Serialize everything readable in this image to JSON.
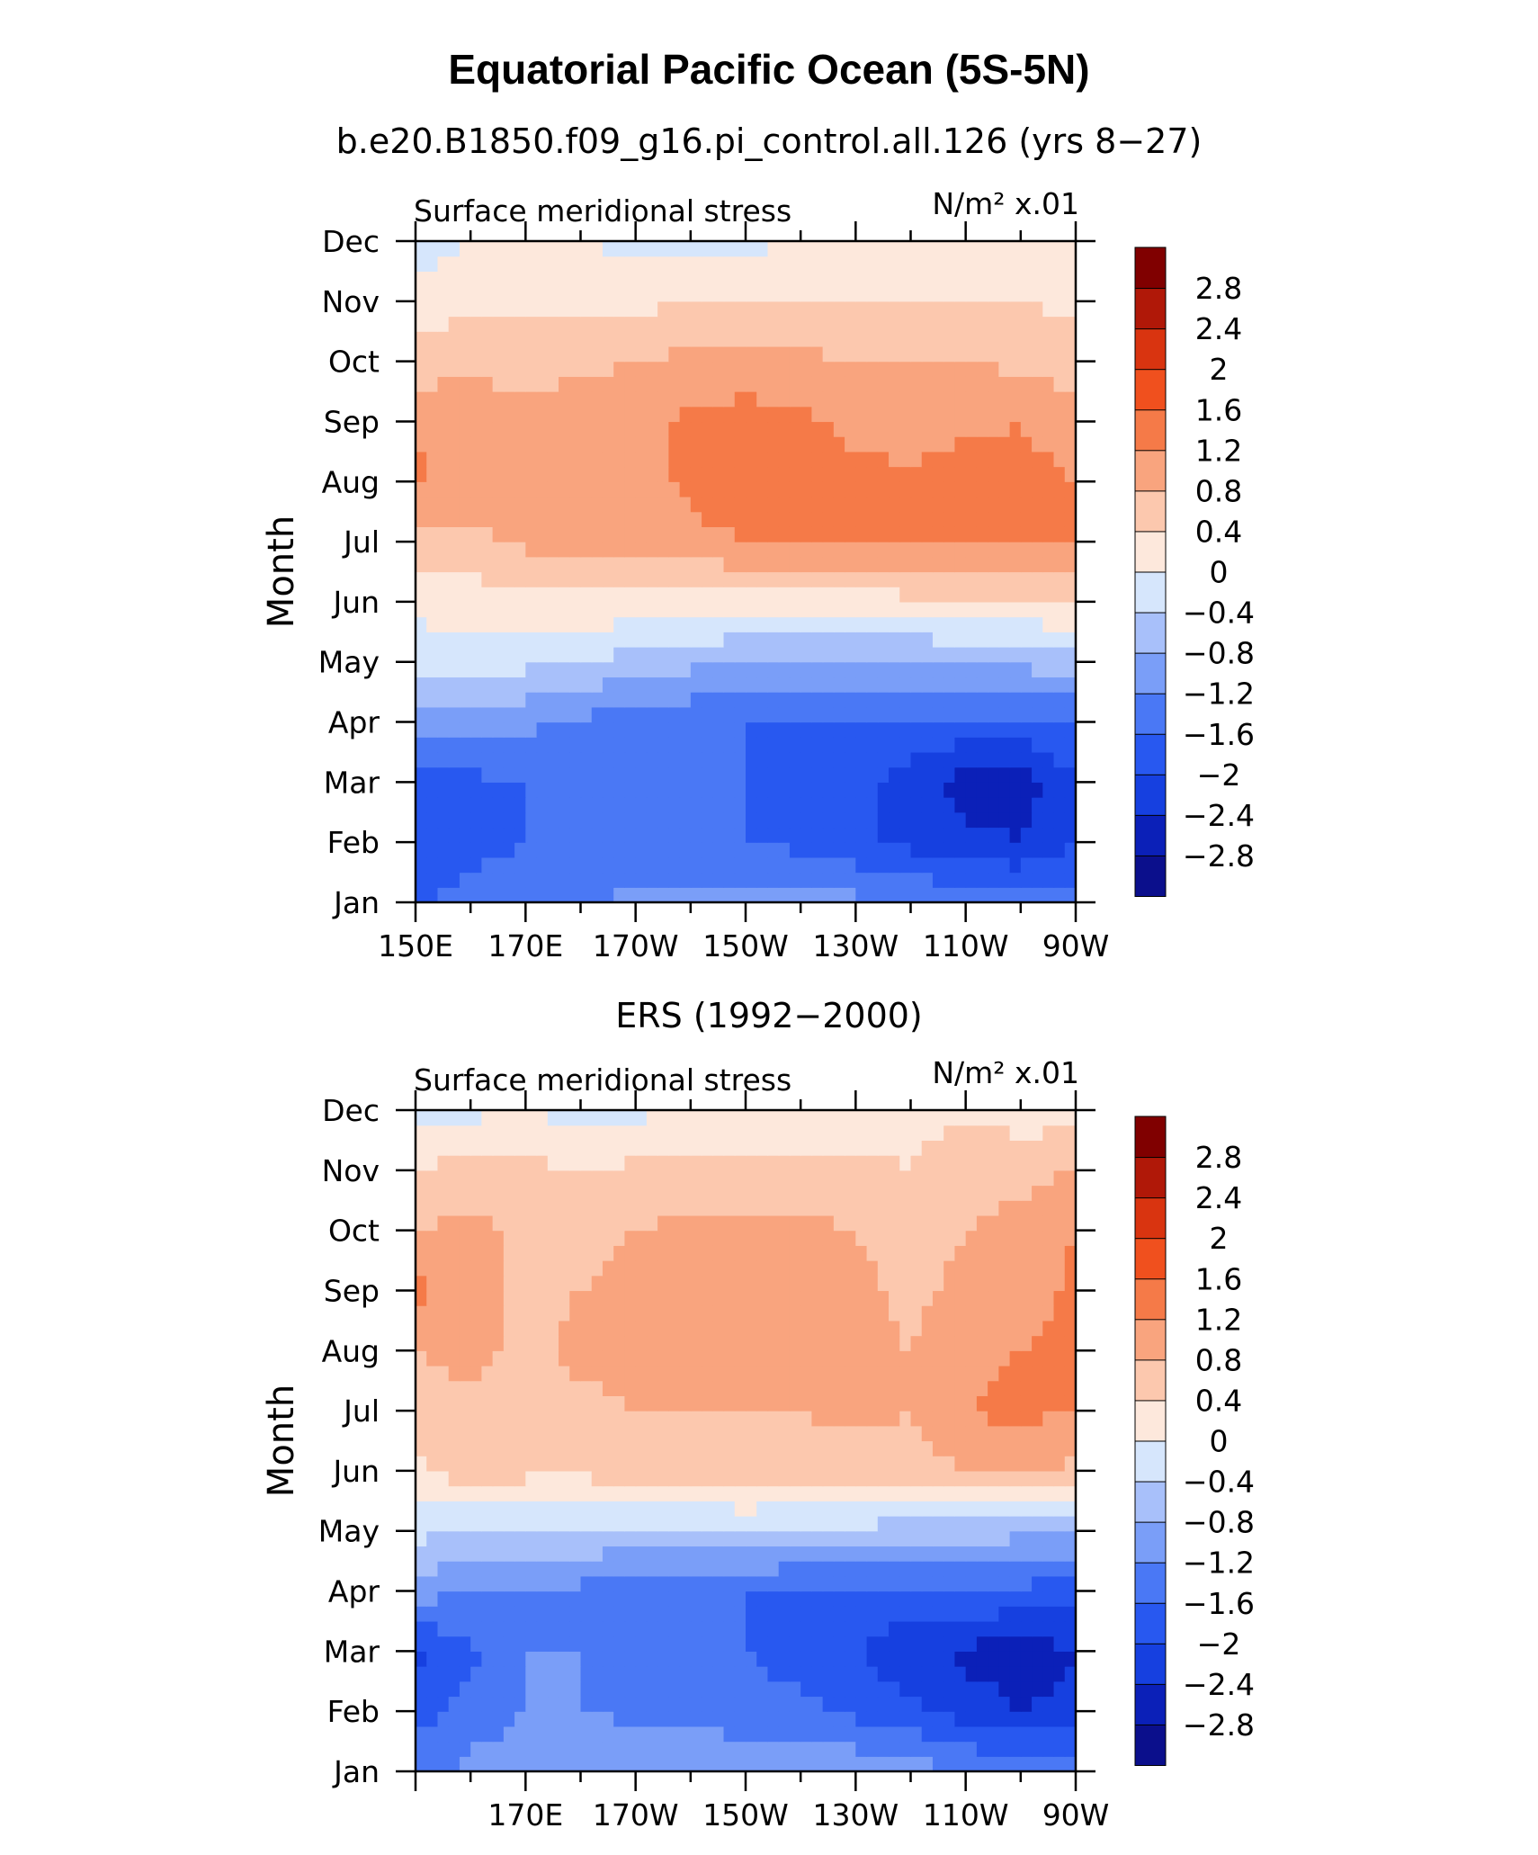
{
  "figure": {
    "title": "Equatorial Pacific Ocean (5S-5N)"
  },
  "legend": {
    "colors": [
      "#0b0f8c",
      "#0b20b8",
      "#1640e0",
      "#2858f0",
      "#4a78f5",
      "#7a9ef8",
      "#a8c0fa",
      "#d6e6fc",
      "#fde8dc",
      "#fcc8ae",
      "#f9a47e",
      "#f57a48",
      "#f0501e",
      "#d93410",
      "#b01808",
      "#800000"
    ],
    "tick_labels": [
      "2.8",
      "2.4",
      "2",
      "1.6",
      "1.2",
      "0.8",
      "0.4",
      "0",
      "−0.4",
      "−0.8",
      "−1.2",
      "−1.6",
      "−2",
      "−2.4",
      "−2.8"
    ]
  },
  "chart_data": [
    {
      "type": "heatmap",
      "title": "b.e20.B1850.f09_g16.pi_control.all.126 (yrs 8−27)",
      "left_label": "Surface meridional stress",
      "right_label": "N/m² x.01",
      "ylabel": "Month",
      "xlabel": "",
      "y_categories": [
        "Jan",
        "Feb",
        "Mar",
        "Apr",
        "May",
        "Jun",
        "Jul",
        "Aug",
        "Sep",
        "Oct",
        "Nov",
        "Dec"
      ],
      "x_tick_labels": [
        "150E",
        "170E",
        "170W",
        "150W",
        "130W",
        "110W",
        "90W"
      ],
      "x_range": [
        150,
        270
      ],
      "levels": [
        -2.8,
        -2.4,
        -2.0,
        -1.6,
        -1.2,
        -0.8,
        -0.4,
        0,
        0.4,
        0.8,
        1.2,
        1.6,
        2.0,
        2.4,
        2.8
      ],
      "longitudes": [
        150,
        160,
        170,
        180,
        190,
        200,
        210,
        220,
        230,
        240,
        250,
        260,
        270
      ],
      "values": [
        [
          -1.6,
          -1.5,
          -1.4,
          -1.2,
          -1.1,
          -1.0,
          -1.0,
          -1.0,
          -1.1,
          -1.2,
          -1.3,
          -1.4,
          -1.4
        ],
        [
          -1.9,
          -1.7,
          -1.6,
          -1.6,
          -1.6,
          -1.6,
          -1.6,
          -1.7,
          -1.9,
          -2.1,
          -2.3,
          -2.4,
          -2.0
        ],
        [
          -1.8,
          -1.7,
          -1.6,
          -1.6,
          -1.6,
          -1.6,
          -1.6,
          -1.7,
          -1.9,
          -2.2,
          -2.6,
          -2.6,
          -2.0
        ],
        [
          -1.1,
          -1.1,
          -1.1,
          -1.3,
          -1.4,
          -1.5,
          -1.6,
          -1.6,
          -1.6,
          -1.6,
          -1.7,
          -1.7,
          -1.6
        ],
        [
          -0.2,
          -0.2,
          -0.3,
          -0.4,
          -0.6,
          -0.7,
          -0.8,
          -0.9,
          -0.9,
          -0.9,
          -0.8,
          -0.7,
          -0.6
        ],
        [
          0.1,
          0.2,
          0.2,
          0.3,
          0.3,
          0.2,
          0.2,
          0.2,
          0.2,
          0.3,
          0.4,
          0.4,
          0.4
        ],
        [
          0.6,
          0.7,
          0.9,
          0.9,
          0.9,
          1.1,
          1.2,
          1.2,
          1.2,
          1.3,
          1.3,
          1.3,
          1.2
        ],
        [
          1.3,
          1.0,
          0.9,
          0.9,
          1.0,
          1.3,
          1.4,
          1.4,
          1.3,
          1.3,
          1.4,
          1.4,
          1.2
        ],
        [
          1.1,
          1.0,
          0.9,
          1.0,
          1.1,
          1.3,
          1.4,
          1.3,
          1.1,
          1.0,
          1.1,
          1.2,
          0.9
        ],
        [
          0.6,
          0.7,
          0.7,
          0.7,
          0.8,
          0.9,
          0.9,
          0.9,
          0.8,
          0.8,
          0.8,
          0.7,
          0.6
        ],
        [
          0.2,
          0.3,
          0.3,
          0.3,
          0.3,
          0.4,
          0.4,
          0.4,
          0.4,
          0.4,
          0.4,
          0.4,
          0.3
        ],
        [
          -0.2,
          0.0,
          0.1,
          0.0,
          -0.1,
          -0.1,
          -0.1,
          0.0,
          0.1,
          0.1,
          0.1,
          0.1,
          0.1
        ]
      ]
    },
    {
      "type": "heatmap",
      "title": "ERS (1992−2000)",
      "left_label": "Surface meridional stress",
      "right_label": "N/m² x.01",
      "ylabel": "Month",
      "xlabel": "",
      "y_categories": [
        "Jan",
        "Feb",
        "Mar",
        "Apr",
        "May",
        "Jun",
        "Jul",
        "Aug",
        "Sep",
        "Oct",
        "Nov",
        "Dec"
      ],
      "x_tick_labels": [
        "170E",
        "170W",
        "150W",
        "130W",
        "110W",
        "90W"
      ],
      "x_range": [
        150,
        270
      ],
      "levels": [
        -2.8,
        -2.4,
        -2.0,
        -1.6,
        -1.2,
        -0.8,
        -0.4,
        0,
        0.4,
        0.8,
        1.2,
        1.6,
        2.0,
        2.4,
        2.8
      ],
      "longitudes": [
        150,
        160,
        170,
        180,
        190,
        200,
        210,
        220,
        230,
        240,
        250,
        260,
        270
      ],
      "values": [
        [
          -1.3,
          -1.1,
          -1.0,
          -0.9,
          -0.8,
          -1.0,
          -0.9,
          -0.8,
          -0.9,
          -1.0,
          -1.2,
          -1.3,
          -1.4
        ],
        [
          -1.8,
          -1.4,
          -1.2,
          -1.2,
          -1.3,
          -1.3,
          -1.4,
          -1.5,
          -1.7,
          -1.9,
          -2.2,
          -2.4,
          -2.3
        ],
        [
          -2.1,
          -1.7,
          -1.2,
          -1.2,
          -1.4,
          -1.5,
          -1.6,
          -1.8,
          -2.0,
          -2.3,
          -2.5,
          -2.6,
          -2.4
        ],
        [
          -1.0,
          -1.2,
          -1.2,
          -1.3,
          -1.5,
          -1.6,
          -1.6,
          -1.7,
          -1.7,
          -1.7,
          -1.6,
          -1.7,
          -1.8
        ],
        [
          -0.3,
          -0.4,
          -0.3,
          -0.4,
          -0.5,
          -0.5,
          -0.4,
          -0.5,
          -0.5,
          -0.6,
          -0.6,
          -0.7,
          -0.7
        ],
        [
          0.3,
          0.6,
          0.5,
          0.5,
          0.6,
          0.7,
          0.7,
          0.6,
          0.6,
          0.6,
          0.8,
          0.9,
          0.7
        ],
        [
          0.7,
          0.7,
          0.6,
          0.7,
          0.8,
          0.8,
          0.8,
          0.8,
          0.9,
          0.8,
          1.2,
          1.3,
          1.2
        ],
        [
          0.8,
          0.9,
          0.7,
          0.9,
          0.9,
          1.0,
          1.0,
          1.0,
          0.9,
          0.8,
          1.1,
          1.2,
          1.3
        ],
        [
          1.3,
          1.0,
          0.7,
          0.8,
          0.9,
          1.0,
          1.0,
          1.0,
          0.9,
          0.7,
          0.9,
          1.0,
          1.3
        ],
        [
          0.8,
          0.9,
          0.7,
          0.7,
          0.8,
          0.9,
          0.9,
          0.9,
          0.8,
          0.6,
          0.8,
          0.9,
          1.2
        ],
        [
          0.4,
          0.6,
          0.5,
          0.4,
          0.5,
          0.5,
          0.5,
          0.5,
          0.5,
          0.4,
          0.7,
          0.7,
          0.8
        ],
        [
          -0.2,
          -0.1,
          0.0,
          -0.2,
          -0.1,
          0.1,
          0.2,
          0.2,
          0.2,
          0.3,
          0.3,
          0.2,
          0.2
        ]
      ]
    }
  ]
}
